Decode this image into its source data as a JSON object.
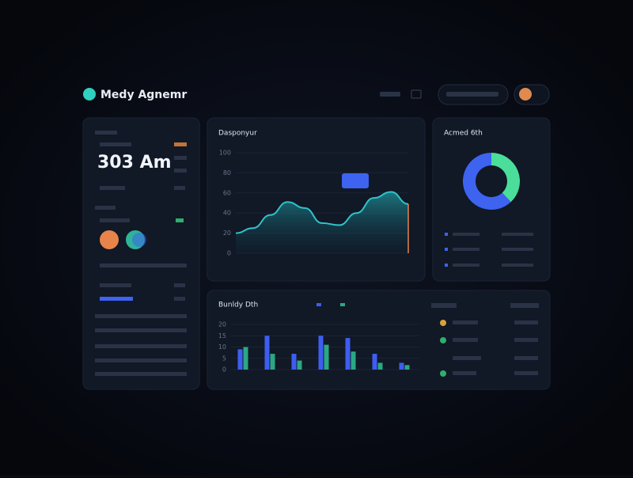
{
  "header": {
    "brand": "Medy Agnemr"
  },
  "stat": {
    "value": "303 Am"
  },
  "charts": [
    {
      "type": "area",
      "title": "Dasponyur",
      "color": "#2fc4c9",
      "values": [
        20,
        25,
        38,
        51,
        45,
        30,
        28,
        40,
        55,
        61,
        49
      ],
      "ylim": [
        0,
        100
      ],
      "yticks": [
        0,
        20,
        40,
        60,
        80,
        100
      ]
    },
    {
      "type": "donut",
      "title": "Acmed 6th",
      "values": [
        38,
        62
      ],
      "colors": [
        "#4ade9a",
        "#3d63f0"
      ]
    },
    {
      "type": "bar",
      "title": "Bunldy Dth",
      "series": [
        {
          "color": "#3d5ef0",
          "values": [
            9,
            15,
            7,
            15,
            14,
            7,
            3
          ]
        },
        {
          "color": "#2aa884",
          "values": [
            10,
            7,
            4,
            11,
            8,
            3,
            2
          ]
        }
      ],
      "ylim": [
        0,
        20
      ],
      "yticks": [
        0,
        5,
        10,
        15,
        20
      ]
    }
  ]
}
